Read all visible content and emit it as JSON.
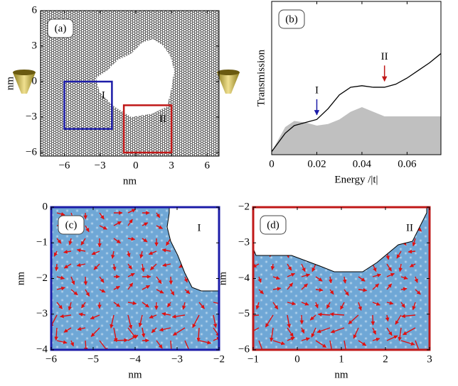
{
  "chart_data": [
    {
      "type": "lattice",
      "panel_label": "(a)",
      "xlabel": "nm",
      "ylabel": "nm",
      "xlim": [
        -8,
        7
      ],
      "ylim": [
        -6.3,
        6
      ],
      "xticks": [
        {
          "value": -6,
          "label": "−6"
        },
        {
          "value": -3,
          "label": "−3"
        },
        0,
        3,
        6
      ],
      "yticks": [
        6,
        3,
        0,
        {
          "value": -3,
          "label": "−3"
        },
        {
          "value": -6,
          "label": "−6"
        }
      ],
      "regions": [
        {
          "label": "I",
          "color": "#1c1ca8",
          "x": [
            -6,
            -2
          ],
          "y": [
            -4,
            0
          ]
        },
        {
          "label": "II",
          "color": "#c01818",
          "x": [
            -1,
            3
          ],
          "y": [
            -6,
            -2
          ]
        }
      ]
    },
    {
      "type": "line",
      "panel_label": "(b)",
      "xlabel": "Energy /|t|",
      "ylabel": "Transmission",
      "xlim": [
        0,
        0.075
      ],
      "ylim": [
        0,
        1
      ],
      "xticks": [
        0,
        0.02,
        0.04,
        0.06
      ],
      "x": [
        0,
        0.003,
        0.006,
        0.01,
        0.015,
        0.02,
        0.025,
        0.03,
        0.035,
        0.04,
        0.045,
        0.05,
        0.055,
        0.06,
        0.065,
        0.07,
        0.075
      ],
      "series": [
        {
          "style": "area",
          "color": "#c0c0c0",
          "values": [
            0.02,
            0.1,
            0.18,
            0.22,
            0.21,
            0.19,
            0.2,
            0.23,
            0.28,
            0.31,
            0.28,
            0.25,
            0.25,
            0.25,
            0.25,
            0.25,
            0.25
          ]
        },
        {
          "style": "line",
          "color": "#000000",
          "values": [
            0.02,
            0.08,
            0.14,
            0.19,
            0.21,
            0.23,
            0.3,
            0.39,
            0.44,
            0.45,
            0.44,
            0.44,
            0.46,
            0.5,
            0.55,
            0.6,
            0.66
          ]
        }
      ],
      "annotations": [
        {
          "text": "I",
          "x": 0.02,
          "y": 0.26,
          "color": "#1c1ca8"
        },
        {
          "text": "II",
          "x": 0.05,
          "y": 0.48,
          "color": "#c01818"
        }
      ]
    },
    {
      "type": "vector-field",
      "panel_label": "(c)",
      "region_label": "I",
      "color": "#1c1ca8",
      "xlabel": "nm",
      "ylabel": "nm",
      "xlim": [
        -6,
        -2
      ],
      "ylim": [
        -4,
        0
      ],
      "xticks": [
        {
          "value": -6,
          "label": "−6"
        },
        {
          "value": -5,
          "label": "−5"
        },
        {
          "value": -4,
          "label": "−4"
        },
        {
          "value": -3,
          "label": "−3"
        },
        {
          "value": -2,
          "label": "−2"
        }
      ],
      "yticks": [
        0,
        {
          "value": -1,
          "label": "−1"
        },
        {
          "value": -2,
          "label": "−2"
        },
        {
          "value": -3,
          "label": "−3"
        },
        {
          "value": -4,
          "label": "−4"
        }
      ]
    },
    {
      "type": "vector-field",
      "panel_label": "(d)",
      "region_label": "II",
      "color": "#c01818",
      "xlabel": "nm",
      "ylabel": "nm",
      "xlim": [
        -1,
        3
      ],
      "ylim": [
        -6,
        -2
      ],
      "xticks": [
        {
          "value": -1,
          "label": "−1"
        },
        0,
        1,
        2,
        3
      ],
      "yticks": [
        {
          "value": -2,
          "label": "−2"
        },
        {
          "value": -3,
          "label": "−3"
        },
        {
          "value": -4,
          "label": "−4"
        },
        {
          "value": -5,
          "label": "−5"
        },
        {
          "value": -6,
          "label": "−6"
        }
      ]
    }
  ]
}
